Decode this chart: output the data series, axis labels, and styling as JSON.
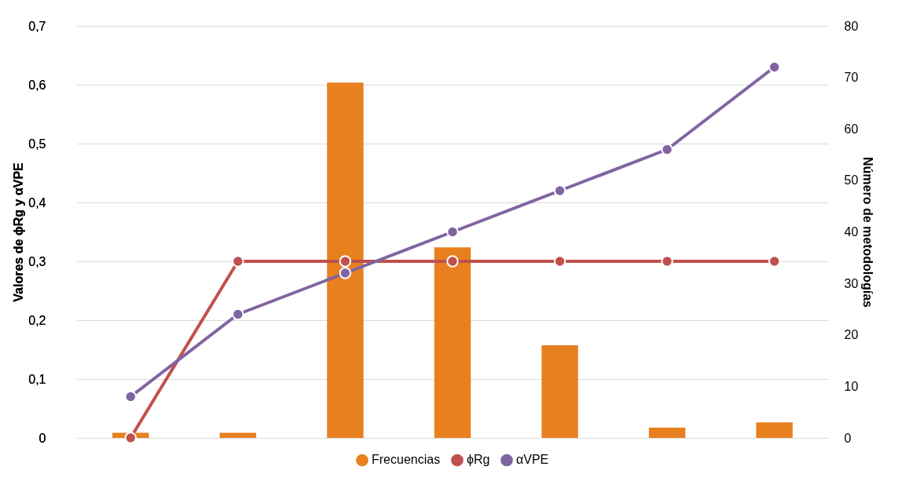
{
  "chart_data": {
    "type": "bar",
    "categories": [
      null,
      null,
      null,
      null,
      null,
      null,
      null
    ],
    "ylabel": "Valores de ϕRg y αVPE",
    "y2label": "Número de metodologías",
    "ylim": [
      0,
      0.7
    ],
    "yticks": [
      0,
      {
        "value": 0.1,
        "label": "0,1"
      },
      {
        "value": 0.2,
        "label": "0,2"
      },
      {
        "value": 0.3,
        "label": "0,3"
      },
      {
        "value": 0.4,
        "label": "0,4"
      },
      {
        "value": 0.5,
        "label": "0,5"
      },
      {
        "value": 0.6,
        "label": "0,6"
      },
      {
        "value": 0.7,
        "label": "0,7"
      }
    ],
    "y2lim": [
      0,
      80
    ],
    "y2ticks": [
      0,
      10,
      20,
      30,
      40,
      50,
      60,
      70,
      80
    ],
    "series": [
      {
        "name": "Frecuencias",
        "axis": "y2",
        "color": "#e8801f",
        "values": [
          1,
          1,
          69,
          37,
          18,
          2,
          3
        ]
      },
      {
        "name": "ϕRg",
        "type": "line",
        "color": "#c0504d",
        "values": [
          0,
          0.3,
          0.3,
          0.3,
          0.3,
          0.3,
          0.3
        ]
      },
      {
        "name": "αVPE",
        "type": "line",
        "color": "#8064a2",
        "values": [
          0.07,
          0.21,
          0.28,
          0.35,
          0.42,
          0.49,
          0.63
        ]
      }
    ],
    "grid": "y",
    "legend": "bottom",
    "marker": "circle",
    "line_style": "solid"
  }
}
